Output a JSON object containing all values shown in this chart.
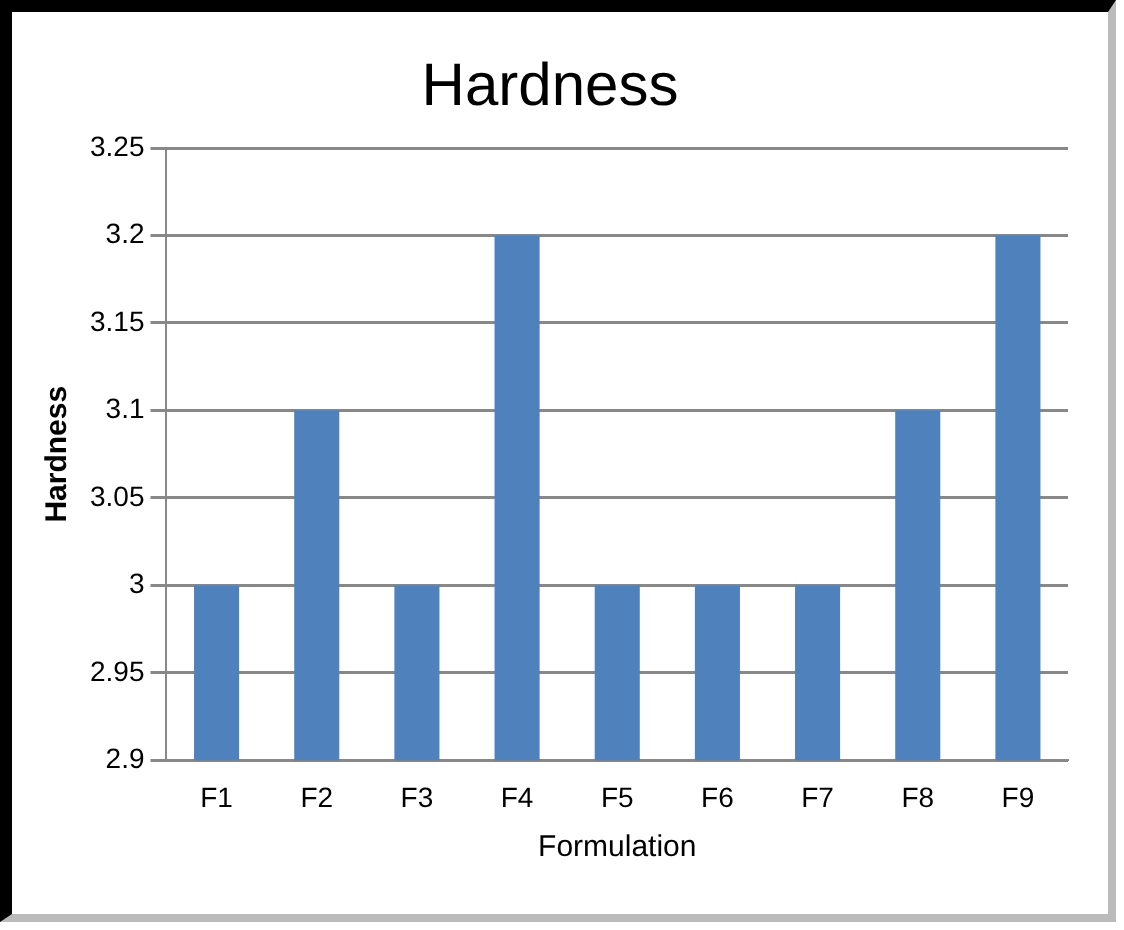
{
  "chart_data": {
    "type": "bar",
    "title": "Hardness",
    "xlabel": "Formulation",
    "ylabel": "Hardness",
    "categories": [
      "F1",
      "F2",
      "F3",
      "F4",
      "F5",
      "F6",
      "F7",
      "F8",
      "F9"
    ],
    "values": [
      3,
      3.1,
      3,
      3.2,
      3,
      3,
      3,
      3.1,
      3.2
    ],
    "color": "#4f81bd",
    "ylim": [
      2.9,
      3.25
    ],
    "yticks": [
      2.9,
      2.95,
      3,
      3.05,
      3.1,
      3.15,
      3.2,
      3.25
    ],
    "grid": "y",
    "legend": false
  }
}
